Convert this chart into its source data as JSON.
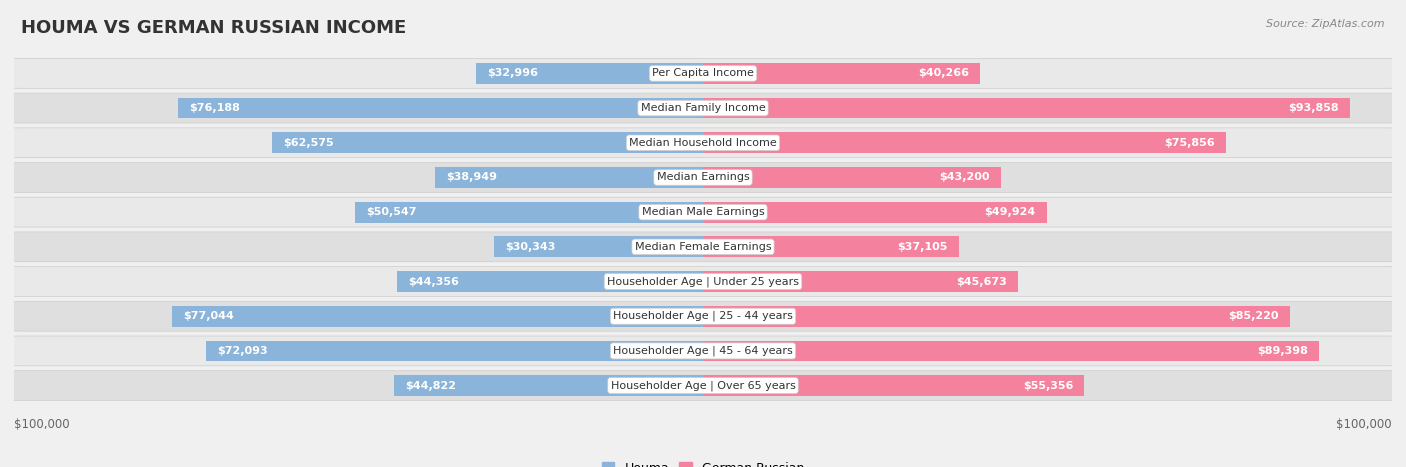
{
  "title": "HOUMA VS GERMAN RUSSIAN INCOME",
  "source": "Source: ZipAtlas.com",
  "categories": [
    "Per Capita Income",
    "Median Family Income",
    "Median Household Income",
    "Median Earnings",
    "Median Male Earnings",
    "Median Female Earnings",
    "Householder Age | Under 25 years",
    "Householder Age | 25 - 44 years",
    "Householder Age | 45 - 64 years",
    "Householder Age | Over 65 years"
  ],
  "houma_values": [
    32996,
    76188,
    62575,
    38949,
    50547,
    30343,
    44356,
    77044,
    72093,
    44822
  ],
  "german_russian_values": [
    40266,
    93858,
    75856,
    43200,
    49924,
    37105,
    45673,
    85220,
    89398,
    55356
  ],
  "houma_color": "#8ab4d9",
  "german_russian_color": "#f4829e",
  "houma_label": "Houma",
  "german_russian_label": "German Russian",
  "max_value": 100000,
  "xlabel_left": "$100,000",
  "xlabel_right": "$100,000",
  "bg_color": "#f0f0f0",
  "row_bg_even": "#e8e8e8",
  "row_bg_odd": "#d8d8d8",
  "title_fontsize": 13,
  "label_fontsize": 8,
  "value_fontsize": 8,
  "inside_threshold": 15000
}
